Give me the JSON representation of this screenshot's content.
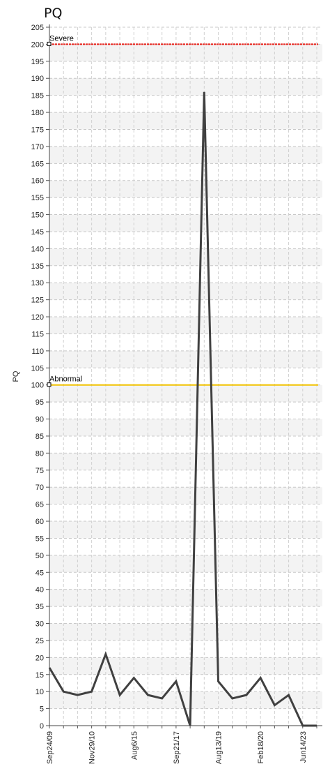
{
  "chart_data": {
    "type": "line",
    "title": "PQ",
    "ylabel": "PQ",
    "xlabel": "",
    "ylim": [
      0,
      205
    ],
    "y_tick_step": 5,
    "grid": true,
    "x_tick_labels": [
      "Sep24/09",
      "Nov29/10",
      "Aug6/15",
      "Sep21/17",
      "Aug13/19",
      "Feb18/20",
      "Jun14/23"
    ],
    "x_tick_label_positions": [
      0,
      3,
      6,
      9,
      12,
      15,
      18
    ],
    "series": [
      {
        "color": "#404040",
        "values": [
          17,
          10,
          9,
          10,
          21,
          9,
          14,
          9,
          8,
          13,
          0,
          186,
          13,
          8,
          9,
          14,
          6,
          9,
          0,
          0
        ]
      }
    ],
    "reference_lines": [
      {
        "label": "Severe",
        "value": 200,
        "color": "#e8221a"
      },
      {
        "label": "Abnormal",
        "value": 100,
        "color": "#f2c200"
      }
    ]
  }
}
